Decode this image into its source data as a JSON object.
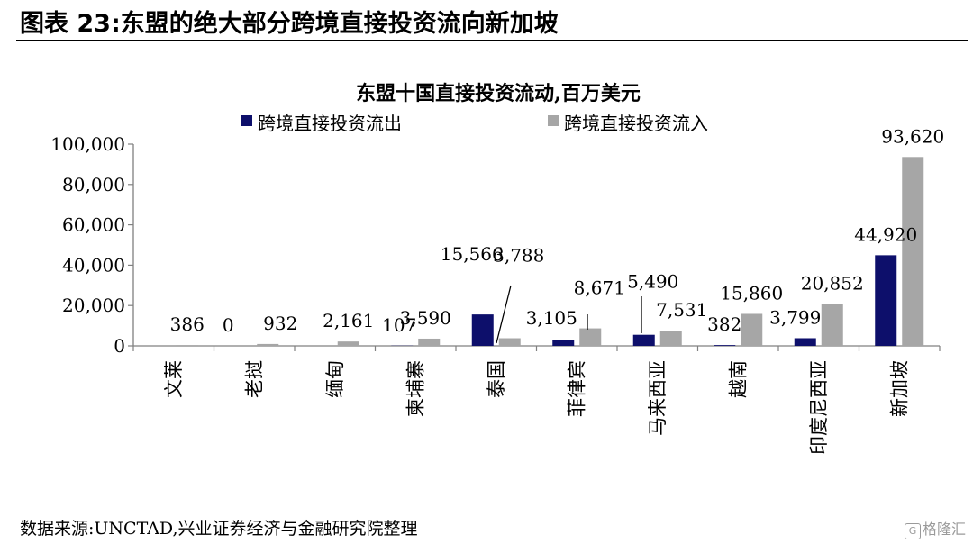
{
  "figure": {
    "title": "图表 23:东盟的绝大部分跨境直接投资流向新加坡",
    "source": "数据来源:UNCTAD,兴业证券经济与金融研究院整理",
    "watermark": "格隆汇"
  },
  "colors": {
    "outflow": "#0d0f6b",
    "inflow": "#a6a6a6",
    "axis": "#808080",
    "text": "#000000"
  },
  "chart_data": {
    "type": "bar",
    "title": "东盟十国直接投资流动,百万美元",
    "categories": [
      "文莱",
      "老挝",
      "缅甸",
      "柬埔寨",
      "泰国",
      "菲律宾",
      "马来西亚",
      "越南",
      "印度尼西亚",
      "新加坡"
    ],
    "series": [
      {
        "name": "跨境直接投资流出",
        "values": [
          0,
          0,
          0,
          107,
          15566,
          3105,
          5490,
          382,
          3799,
          44920
        ],
        "labels": [
          "",
          "0",
          "",
          "107",
          "15,566",
          "3,105",
          "5,490",
          "382",
          "3,799",
          "44,920"
        ]
      },
      {
        "name": "跨境直接投资流入",
        "values": [
          386,
          932,
          2161,
          3590,
          3788,
          8671,
          7531,
          15860,
          20852,
          93620
        ],
        "labels": [
          "386",
          "932",
          "2,161",
          "3,590",
          "3,788",
          "8,671",
          "7,531",
          "15,860",
          "20,852",
          "93,620"
        ]
      }
    ],
    "ylim": [
      0,
      100000
    ],
    "yticks": [
      0,
      20000,
      40000,
      60000,
      80000,
      100000
    ],
    "ytick_labels": [
      "0",
      "20,000",
      "40,000",
      "60,000",
      "80,000",
      "100,000"
    ],
    "legend_position": "top",
    "grid": false
  }
}
